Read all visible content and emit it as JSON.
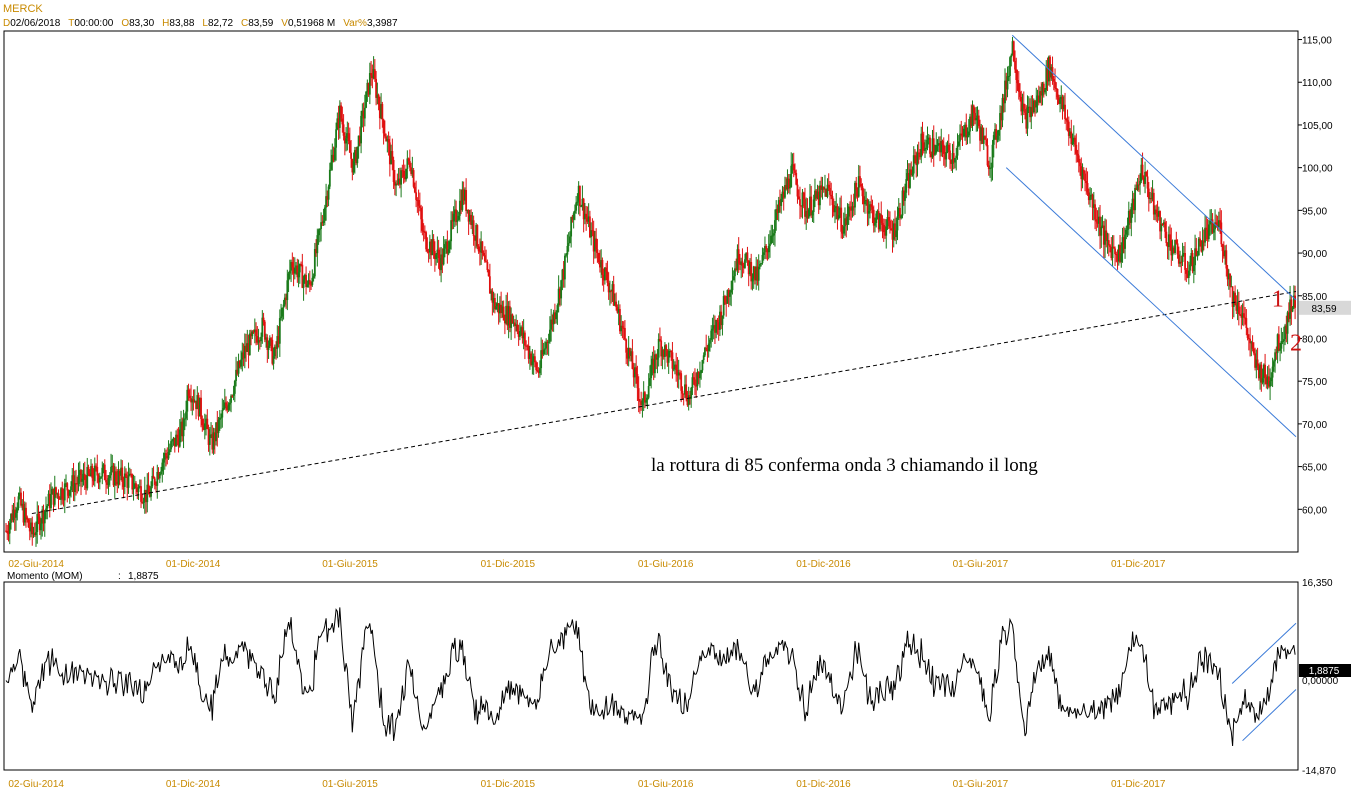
{
  "symbol": "MERCK",
  "header": [
    {
      "key": "D",
      "value": "02/06/2018"
    },
    {
      "key": "T",
      "value": "00:00:00"
    },
    {
      "key": "O",
      "value": "83,30"
    },
    {
      "key": "H",
      "value": "83,88"
    },
    {
      "key": "L",
      "value": "82,72"
    },
    {
      "key": "C",
      "value": "83,59"
    },
    {
      "key": "V",
      "value": "0,51968 M"
    },
    {
      "key": "Var%",
      "value": "3,3987"
    }
  ],
  "colors": {
    "up": "#1a7a1a",
    "down": "#e01010",
    "channel": "#3a7ad8",
    "trendline": "#000000",
    "axis_date": "#c88a00",
    "wave_label": "#cc1111",
    "last_price_bg": "#d8d8d8",
    "last_mom_bg": "#000000"
  },
  "annotation": "la rottura di 85 conferma onda 3 chiamando il long",
  "wave_labels": [
    "1",
    "2"
  ],
  "price_last": "83,59",
  "indicator": {
    "name": "Momento (MOM)",
    "value": "1,8875",
    "max_label": "16,350",
    "zero_label": "0,00000",
    "min_label": "-14,870"
  },
  "chart_data": [
    {
      "type": "candlestick",
      "title": "MERCK",
      "ylim": [
        55,
        116
      ],
      "yticks": [
        "60,00",
        "65,00",
        "70,00",
        "75,00",
        "80,00",
        "85,00",
        "90,00",
        "95,00",
        "100,00",
        "105,00",
        "110,00",
        "115,00"
      ],
      "x_tick_labels": [
        "02-Giu-2014",
        "01-Dic-2014",
        "01-Giu-2015",
        "01-Dic-2015",
        "01-Giu-2016",
        "01-Dic-2016",
        "01-Giu-2017",
        "01-Dic-2017"
      ],
      "x_range": [
        "2014-04-28",
        "2018-06-02"
      ],
      "price_path": [
        [
          "2014-04-28",
          57.5
        ],
        [
          "2014-05-12",
          61.2
        ],
        [
          "2014-05-28",
          57.0
        ],
        [
          "2014-06-20",
          61.5
        ],
        [
          "2014-07-15",
          63.0
        ],
        [
          "2014-08-15",
          64.3
        ],
        [
          "2014-09-15",
          63.5
        ],
        [
          "2014-10-10",
          61.5
        ],
        [
          "2014-10-25",
          65.5
        ],
        [
          "2014-11-20",
          69.5
        ],
        [
          "2014-11-25",
          74.5
        ],
        [
          "2014-12-08",
          72.0
        ],
        [
          "2014-12-22",
          67.5
        ],
        [
          "2015-01-15",
          74.0
        ],
        [
          "2015-01-30",
          78.5
        ],
        [
          "2015-02-20",
          81.5
        ],
        [
          "2015-03-05",
          77.5
        ],
        [
          "2015-03-25",
          89.0
        ],
        [
          "2015-04-15",
          86.0
        ],
        [
          "2015-04-30",
          94.0
        ],
        [
          "2015-05-20",
          106.5
        ],
        [
          "2015-06-05",
          100.0
        ],
        [
          "2015-06-26",
          111.5
        ],
        [
          "2015-07-10",
          105.0
        ],
        [
          "2015-07-25",
          97.5
        ],
        [
          "2015-08-10",
          101.0
        ],
        [
          "2015-08-25",
          92.0
        ],
        [
          "2015-09-15",
          89.0
        ],
        [
          "2015-10-10",
          97.0
        ],
        [
          "2015-10-30",
          90.5
        ],
        [
          "2015-11-15",
          84.0
        ],
        [
          "2015-12-10",
          82.0
        ],
        [
          "2016-01-05",
          76.0
        ],
        [
          "2016-01-25",
          83.5
        ],
        [
          "2016-02-05",
          88.5
        ],
        [
          "2016-02-20",
          97.5
        ],
        [
          "2016-03-10",
          91.0
        ],
        [
          "2016-04-01",
          85.0
        ],
        [
          "2016-04-20",
          78.0
        ],
        [
          "2016-05-05",
          72.0
        ],
        [
          "2016-05-25",
          79.5
        ],
        [
          "2016-06-15",
          76.0
        ],
        [
          "2016-06-28",
          73.0
        ],
        [
          "2016-07-15",
          78.0
        ],
        [
          "2016-08-05",
          83.0
        ],
        [
          "2016-08-25",
          90.0
        ],
        [
          "2016-09-15",
          87.0
        ],
        [
          "2016-10-05",
          93.5
        ],
        [
          "2016-10-25",
          99.5
        ],
        [
          "2016-11-10",
          95.0
        ],
        [
          "2016-12-05",
          97.5
        ],
        [
          "2016-12-25",
          93.0
        ],
        [
          "2017-01-10",
          98.0
        ],
        [
          "2017-01-30",
          94.0
        ],
        [
          "2017-02-20",
          92.5
        ],
        [
          "2017-03-08",
          98.0
        ],
        [
          "2017-03-25",
          103.0
        ],
        [
          "2017-04-15",
          102.0
        ],
        [
          "2017-05-01",
          101.5
        ],
        [
          "2017-05-25",
          106.5
        ],
        [
          "2017-06-12",
          100.5
        ],
        [
          "2017-06-28",
          108.0
        ],
        [
          "2017-07-08",
          114.5
        ],
        [
          "2017-07-22",
          105.5
        ],
        [
          "2017-08-10",
          108.5
        ],
        [
          "2017-08-20",
          112.0
        ],
        [
          "2017-09-10",
          105.0
        ],
        [
          "2017-10-05",
          97.0
        ],
        [
          "2017-10-25",
          91.0
        ],
        [
          "2017-11-10",
          90.0
        ],
        [
          "2017-11-25",
          95.5
        ],
        [
          "2017-12-05",
          100.0
        ],
        [
          "2017-12-20",
          95.0
        ],
        [
          "2018-01-08",
          91.0
        ],
        [
          "2018-01-28",
          88.0
        ],
        [
          "2018-02-15",
          92.0
        ],
        [
          "2018-03-05",
          93.5
        ],
        [
          "2018-03-20",
          85.0
        ],
        [
          "2018-04-01",
          83.0
        ],
        [
          "2018-04-15",
          77.0
        ],
        [
          "2018-05-01",
          75.0
        ],
        [
          "2018-05-10",
          79.0
        ],
        [
          "2018-05-20",
          81.0
        ],
        [
          "2018-05-28",
          84.5
        ],
        [
          "2018-06-02",
          83.59
        ]
      ],
      "trendline": [
        [
          "2014-05-28",
          59.5
        ],
        [
          "2018-06-02",
          85.5
        ]
      ],
      "channel_upper": [
        [
          "2017-07-08",
          115.5
        ],
        [
          "2018-06-02",
          84.5
        ]
      ],
      "channel_lower": [
        [
          "2017-07-01",
          100.0
        ],
        [
          "2018-06-02",
          68.5
        ]
      ],
      "annotation_at": [
        "2016-05-15",
        64.5
      ],
      "wave_label_points": [
        [
          "2018-05-28",
          84.7
        ],
        [
          "2018-06-02",
          79.5
        ]
      ]
    },
    {
      "type": "line",
      "name": "Momento (MOM)",
      "ylim": [
        -14.87,
        16.35
      ],
      "yticks": [
        "16,350",
        "0,00000",
        "-14,870"
      ],
      "x_tick_labels": [
        "02-Giu-2014",
        "01-Dic-2014",
        "01-Giu-2015",
        "01-Dic-2015",
        "01-Giu-2016",
        "01-Dic-2016",
        "01-Giu-2017",
        "01-Dic-2017"
      ],
      "x_range": [
        "2014-04-28",
        "2018-06-02"
      ],
      "channel_upper": [
        [
          "2018-03-20",
          -0.5
        ],
        [
          "2018-06-02",
          9.5
        ]
      ],
      "channel_lower": [
        [
          "2018-04-01",
          -10.0
        ],
        [
          "2018-06-02",
          -1.5
        ]
      ],
      "last_value": 1.8875
    }
  ]
}
